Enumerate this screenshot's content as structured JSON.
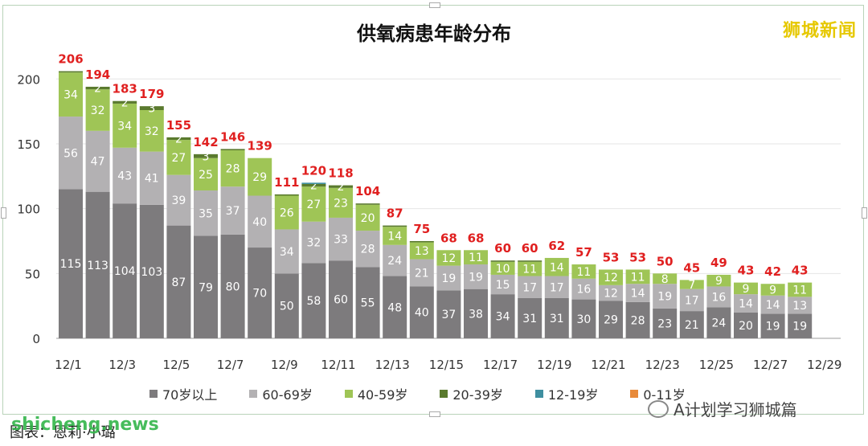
{
  "watermark_top": "狮城新闻",
  "watermark_site": "shicheng.news",
  "caption": "图表：恩莉·小璐",
  "wechat_account": "A计划学习狮城篇",
  "colors": {
    "age_70plus": "#7d7b7d",
    "age_60_69": "#b3b1b3",
    "age_40_59": "#9fc556",
    "age_20_39": "#5a7a2e",
    "age_12_19": "#3f8fa0",
    "age_0_11": "#e88a3a",
    "total_label": "#e02020"
  },
  "chart_data": {
    "type": "bar",
    "stacked": true,
    "title": "供氧病患年龄分布",
    "xlabel": "",
    "ylabel": "",
    "ylim": [
      0,
      220
    ],
    "yticks": [
      0,
      50,
      100,
      150,
      200
    ],
    "x_tick_labels": [
      "12/1",
      "12/3",
      "12/5",
      "12/7",
      "12/9",
      "12/11",
      "12/13",
      "12/15",
      "12/17",
      "12/19",
      "12/21",
      "12/23",
      "12/25",
      "12/27",
      "12/29"
    ],
    "categories": [
      "12/1",
      "12/2",
      "12/3",
      "12/4",
      "12/5",
      "12/6",
      "12/7",
      "12/8",
      "12/9",
      "12/10",
      "12/11",
      "12/12",
      "12/13",
      "12/14",
      "12/15",
      "12/16",
      "12/17",
      "12/18",
      "12/19",
      "12/20",
      "12/21",
      "12/22",
      "12/23",
      "12/24",
      "12/25",
      "12/26",
      "12/27",
      "12/28"
    ],
    "totals": [
      206,
      194,
      183,
      179,
      155,
      142,
      146,
      139,
      111,
      120,
      118,
      104,
      87,
      75,
      68,
      68,
      60,
      60,
      62,
      57,
      53,
      53,
      50,
      45,
      49,
      43,
      42,
      43
    ],
    "series": [
      {
        "name": "70岁以上",
        "values": [
          115,
          113,
          104,
          103,
          87,
          79,
          80,
          70,
          50,
          58,
          60,
          55,
          48,
          40,
          37,
          38,
          34,
          31,
          31,
          30,
          29,
          28,
          23,
          21,
          24,
          20,
          19,
          19
        ]
      },
      {
        "name": "60-69岁",
        "values": [
          56,
          47,
          43,
          41,
          39,
          35,
          37,
          40,
          34,
          32,
          33,
          28,
          24,
          21,
          19,
          19,
          15,
          17,
          17,
          16,
          12,
          14,
          19,
          17,
          16,
          14,
          14,
          13
        ]
      },
      {
        "name": "40-59岁",
        "values": [
          34,
          32,
          34,
          32,
          27,
          25,
          28,
          29,
          26,
          27,
          23,
          20,
          14,
          13,
          12,
          11,
          10,
          11,
          14,
          11,
          12,
          11,
          8,
          7,
          9,
          9,
          9,
          11
        ]
      },
      {
        "name": "20-39岁",
        "values": [
          1,
          2,
          2,
          3,
          2,
          3,
          1,
          0,
          1,
          2,
          2,
          1,
          1,
          1,
          0,
          0,
          1,
          1,
          0,
          0,
          0,
          0,
          0,
          0,
          0,
          0,
          0,
          0
        ]
      },
      {
        "name": "12-19岁",
        "values": [
          0,
          0,
          0,
          0,
          0,
          0,
          0,
          0,
          0,
          1,
          0,
          0,
          0,
          0,
          0,
          0,
          0,
          0,
          0,
          0,
          0,
          0,
          0,
          0,
          0,
          0,
          0,
          0
        ]
      },
      {
        "name": "0-11岁",
        "values": [
          0,
          0,
          0,
          0,
          0,
          0,
          0,
          0,
          0,
          0,
          0,
          0,
          0,
          0,
          0,
          0,
          0,
          0,
          0,
          0,
          0,
          0,
          0,
          0,
          0,
          0,
          0,
          0
        ]
      }
    ],
    "segment_labels": [
      [
        [
          "115",
          "56",
          "34",
          ""
        ],
        [
          "113",
          "47",
          "32",
          "2"
        ],
        [
          "104",
          "43",
          "34",
          "2"
        ],
        [
          "103",
          "41",
          "32",
          "3"
        ],
        [
          "87",
          "39",
          "27",
          "2"
        ],
        [
          "79",
          "35",
          "25",
          "3"
        ],
        [
          "80",
          "37",
          "28",
          ""
        ],
        [
          "70",
          "40",
          "29",
          ""
        ],
        [
          "50",
          "34",
          "26",
          ""
        ],
        [
          "58",
          "32",
          "27",
          "2"
        ],
        [
          "60",
          "33",
          "23",
          "2"
        ],
        [
          "55",
          "28",
          "20",
          ""
        ],
        [
          "48",
          "24",
          "14",
          ""
        ],
        [
          "40",
          "21",
          "13",
          ""
        ],
        [
          "37",
          "19",
          "12",
          ""
        ],
        [
          "38",
          "19",
          "11",
          ""
        ],
        [
          "34",
          "15",
          "10",
          ""
        ],
        [
          "31",
          "17",
          "11",
          ""
        ],
        [
          "31",
          "17",
          "14",
          ""
        ],
        [
          "30",
          "16",
          "11",
          ""
        ],
        [
          "29",
          "12",
          "12",
          ""
        ],
        [
          "28",
          "14",
          "11",
          ""
        ],
        [
          "23",
          "19",
          "8",
          ""
        ],
        [
          "21",
          "17",
          "7",
          ""
        ],
        [
          "24",
          "16",
          "9",
          ""
        ],
        [
          "20",
          "14",
          "9",
          ""
        ],
        [
          "19",
          "14",
          "9",
          ""
        ],
        [
          "19",
          "13",
          "11",
          ""
        ]
      ]
    ],
    "legend": [
      "70岁以上",
      "60-69岁",
      "40-59岁",
      "20-39岁",
      "12-19岁",
      "0-11岁"
    ],
    "legend_position": "bottom",
    "grid": true
  }
}
